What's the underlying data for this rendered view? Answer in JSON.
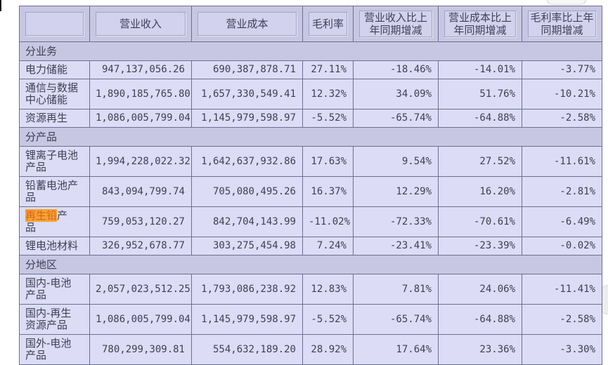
{
  "colors": {
    "header_bg": "#c7c7e3",
    "section_bg": "#c7c7e3",
    "row_bg": "#dcdcf6",
    "border": "#6e6e92",
    "text": "#3e3e56",
    "highlight_bg": "#f5a233",
    "highlight_text": "#d9631e"
  },
  "table": {
    "columns": [
      "",
      "营业收入",
      "营业成本",
      "毛利率",
      "营业收入比上年同期增减",
      "营业成本比上年同期增减",
      "毛利率比上年同期增减"
    ],
    "sections": [
      {
        "label": "分业务",
        "rows": [
          {
            "name": "电力储能",
            "revenue": "947,137,056.26",
            "cost": "690,387,878.71",
            "margin": "27.11%",
            "revenue_yoy": "-18.46%",
            "cost_yoy": "-14.01%",
            "margin_yoy": "-3.77%"
          },
          {
            "name": "通信与数据中心储能",
            "revenue": "1,890,185,765.80",
            "cost": "1,657,330,549.41",
            "margin": "12.32%",
            "revenue_yoy": "34.09%",
            "cost_yoy": "51.76%",
            "margin_yoy": "-10.21%"
          },
          {
            "name": "资源再生",
            "revenue": "1,086,005,799.04",
            "cost": "1,145,979,598.97",
            "margin": "-5.52%",
            "revenue_yoy": "-65.74%",
            "cost_yoy": "-64.88%",
            "margin_yoy": "-2.58%"
          }
        ]
      },
      {
        "label": "分产品",
        "rows": [
          {
            "name": "锂离子电池产品",
            "revenue": "1,994,228,022.32",
            "cost": "1,642,637,932.86",
            "margin": "17.63%",
            "revenue_yoy": "9.54%",
            "cost_yoy": "27.52%",
            "margin_yoy": "-11.61%"
          },
          {
            "name": "铅蓄电池产品",
            "revenue": "843,094,799.74",
            "cost": "705,080,495.26",
            "margin": "16.37%",
            "revenue_yoy": "12.29%",
            "cost_yoy": "16.20%",
            "margin_yoy": "-2.81%"
          },
          {
            "name": "再生铅产品",
            "highlight": "再生铅",
            "revenue": "759,053,120.27",
            "cost": "842,704,143.99",
            "margin": "-11.02%",
            "revenue_yoy": "-72.33%",
            "cost_yoy": "-70.61%",
            "margin_yoy": "-6.49%"
          },
          {
            "name": "锂电池材料",
            "revenue": "326,952,678.77",
            "cost": "303,275,454.98",
            "margin": "7.24%",
            "revenue_yoy": "-23.41%",
            "cost_yoy": "-23.39%",
            "margin_yoy": "-0.02%"
          }
        ]
      },
      {
        "label": "分地区",
        "rows": [
          {
            "name": "国内-电池产品",
            "revenue": "2,057,023,512.25",
            "cost": "1,793,086,238.92",
            "margin": "12.83%",
            "revenue_yoy": "7.81%",
            "cost_yoy": "24.06%",
            "margin_yoy": "-11.41%"
          },
          {
            "name": "国内-再生资源产品",
            "revenue": "1,086,005,799.04",
            "cost": "1,145,979,598.97",
            "margin": "-5.52%",
            "revenue_yoy": "-65.74%",
            "cost_yoy": "-64.88%",
            "margin_yoy": "-2.58%"
          },
          {
            "name": "国外-电池产品",
            "revenue": "780,299,309.81",
            "cost": "554,632,189.20",
            "margin": "28.92%",
            "revenue_yoy": "17.64%",
            "cost_yoy": "23.36%",
            "margin_yoy": "-3.30%"
          }
        ]
      }
    ]
  }
}
